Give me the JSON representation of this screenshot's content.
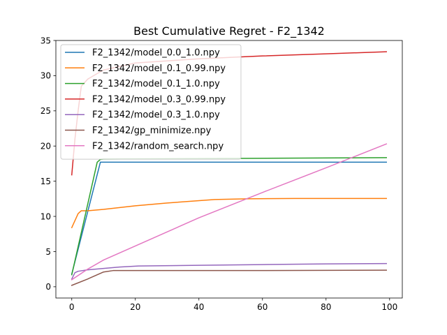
{
  "chart_data": {
    "type": "line",
    "title": "Best Cumulative Regret - F2_1342",
    "xlabel": "",
    "ylabel": "",
    "xlim": [
      -5,
      104
    ],
    "ylim": [
      -1.6,
      35
    ],
    "xticks": [
      0,
      20,
      40,
      60,
      80,
      100
    ],
    "yticks": [
      0,
      5,
      10,
      15,
      20,
      25,
      30,
      35
    ],
    "legend_position": "top-left",
    "grid": false,
    "series": [
      {
        "name": "F2_1342/model_0.0_1.0.npy",
        "color": "#1f77b4",
        "x": [
          0,
          9,
          99
        ],
        "y": [
          1.8,
          17.7,
          17.7
        ]
      },
      {
        "name": "F2_1342/model_0.1_0.99.npy",
        "color": "#ff7f0e",
        "x": [
          0,
          2,
          3,
          5,
          10,
          20,
          30,
          45,
          55,
          70,
          99
        ],
        "y": [
          8.4,
          10.4,
          10.8,
          10.8,
          11.0,
          11.5,
          11.9,
          12.4,
          12.5,
          12.55,
          12.55
        ]
      },
      {
        "name": "F2_1342/model_0.1_1.0.npy",
        "color": "#2ca02c",
        "x": [
          0,
          8,
          9,
          10,
          99
        ],
        "y": [
          1.7,
          17.7,
          18.1,
          18.15,
          18.35
        ]
      },
      {
        "name": "F2_1342/model_0.3_0.99.npy",
        "color": "#d62728",
        "x": [
          0,
          1,
          2,
          3,
          5,
          8,
          10,
          20,
          40,
          60,
          80,
          99
        ],
        "y": [
          15.9,
          21.0,
          25.0,
          28.5,
          29.5,
          30.3,
          30.8,
          31.8,
          32.4,
          32.8,
          33.1,
          33.4
        ]
      },
      {
        "name": "F2_1342/model_0.3_1.0.npy",
        "color": "#9467bd",
        "x": [
          0,
          1,
          2,
          5,
          10,
          15,
          21,
          40,
          60,
          80,
          99
        ],
        "y": [
          1.1,
          2.0,
          2.2,
          2.4,
          2.6,
          2.8,
          2.95,
          3.05,
          3.15,
          3.25,
          3.3
        ]
      },
      {
        "name": "F2_1342/gp_minimize.npy",
        "color": "#8c564b",
        "x": [
          0,
          5,
          10,
          13,
          20,
          50,
          99
        ],
        "y": [
          0.2,
          1.1,
          2.1,
          2.3,
          2.3,
          2.3,
          2.35
        ]
      },
      {
        "name": "F2_1342/random_search.npy",
        "color": "#e377c2",
        "x": [
          0,
          5,
          10,
          20,
          40,
          60,
          80,
          99
        ],
        "y": [
          1.0,
          2.5,
          3.8,
          5.8,
          9.8,
          13.4,
          16.9,
          20.3
        ]
      }
    ]
  }
}
